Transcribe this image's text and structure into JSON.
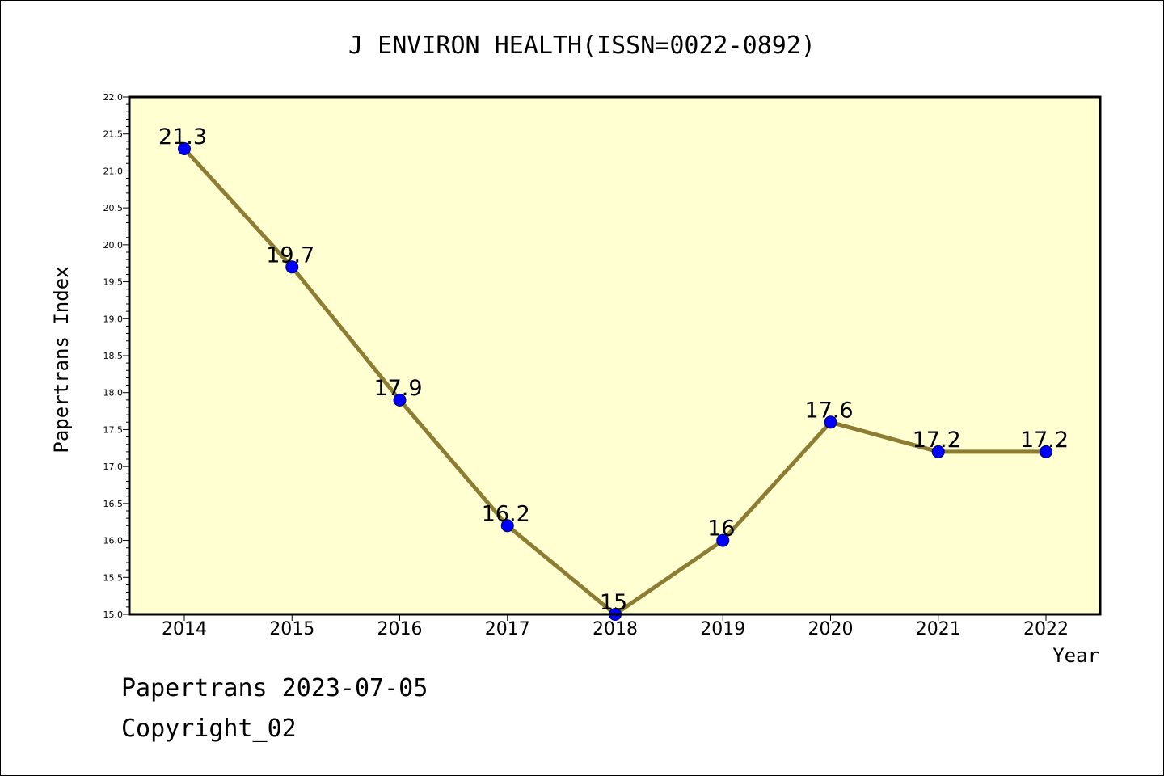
{
  "chart_data": {
    "type": "line",
    "title": "J ENVIRON HEALTH(ISSN=0022-0892)",
    "xlabel": "Year",
    "ylabel": "Papertrans Index",
    "categories": [
      "2014",
      "2015",
      "2016",
      "2017",
      "2018",
      "2019",
      "2020",
      "2021",
      "2022"
    ],
    "series": [
      {
        "values": [
          21.3,
          19.7,
          17.9,
          16.2,
          15,
          16,
          17.6,
          17.2,
          17.2
        ],
        "data_labels": [
          "21.3",
          "19.7",
          "17.9",
          "16.2",
          "15",
          "16",
          "17.6",
          "17.2",
          "17.2"
        ]
      }
    ],
    "ylim": [
      15.0,
      22.0
    ],
    "y_ticks": [
      "15.0",
      "15.5",
      "16.0",
      "16.5",
      "17.0",
      "17.5",
      "18.0",
      "18.5",
      "19.0",
      "19.5",
      "20.0",
      "20.5",
      "21.0",
      "21.5",
      "22.0"
    ],
    "grid": false,
    "colors": {
      "plot_background": "#ffffd2",
      "line": "#8c7d32",
      "marker": "#0000ff",
      "marker_edge": "#000066"
    }
  },
  "footer": {
    "line1": "Papertrans 2023-07-05",
    "line2": "Copyright_02"
  }
}
